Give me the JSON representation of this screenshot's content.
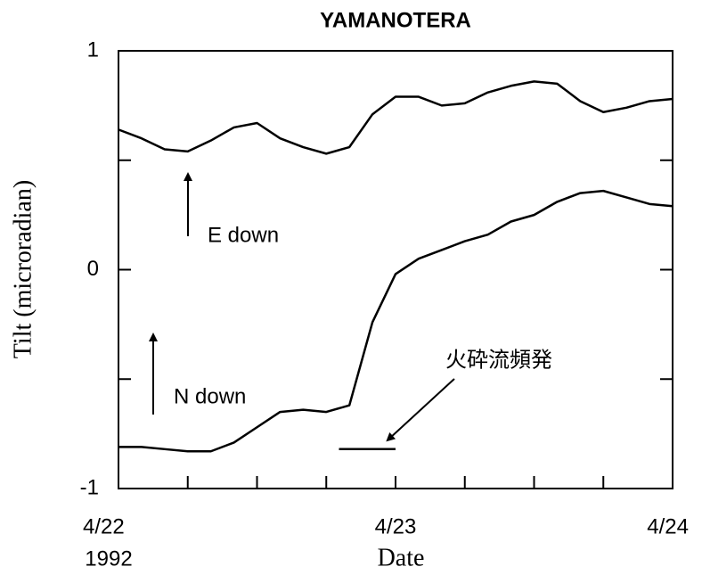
{
  "chart_data": {
    "type": "line",
    "title": "YAMANOTERA",
    "ylabel": "Tilt (microradian)",
    "xlabel": "Date",
    "year_label": "1992",
    "x": [
      0,
      2,
      4,
      6,
      8,
      10,
      12,
      14,
      16,
      18,
      20,
      22,
      24,
      26,
      28,
      30,
      32,
      34,
      36,
      38,
      40,
      42,
      44,
      46,
      48
    ],
    "series": [
      {
        "color": "#000000",
        "values": [
          0.64,
          0.6,
          0.55,
          0.54,
          0.59,
          0.65,
          0.67,
          0.6,
          0.56,
          0.53,
          0.56,
          0.71,
          0.79,
          0.79,
          0.75,
          0.76,
          0.81,
          0.84,
          0.86,
          0.85,
          0.77,
          0.72,
          0.74,
          0.77,
          0.78
        ]
      },
      {
        "color": "#000000",
        "values": [
          -0.81,
          -0.81,
          -0.82,
          -0.83,
          -0.83,
          -0.79,
          -0.72,
          -0.65,
          -0.64,
          -0.65,
          -0.62,
          -0.24,
          -0.02,
          0.05,
          0.09,
          0.13,
          0.16,
          0.22,
          0.25,
          0.31,
          0.35,
          0.36,
          0.33,
          0.3,
          0.29
        ]
      }
    ],
    "xlim": [
      0,
      48
    ],
    "xticks": [
      {
        "value": 0,
        "label": "4/22"
      },
      {
        "value": 24,
        "label": "4/23"
      },
      {
        "value": 48,
        "label": "4/24"
      }
    ],
    "minor_xticks": [
      6,
      12,
      18,
      30,
      36,
      42
    ],
    "ylim": [
      -1,
      1
    ],
    "yticks": [
      -1,
      0,
      1
    ],
    "minor_yticks": [
      -0.5,
      0.5
    ],
    "annotations": [
      "E down",
      "N down",
      "火砕流頻発"
    ],
    "event": {
      "x": [
        19.1,
        24
      ],
      "y": -0.82
    }
  }
}
